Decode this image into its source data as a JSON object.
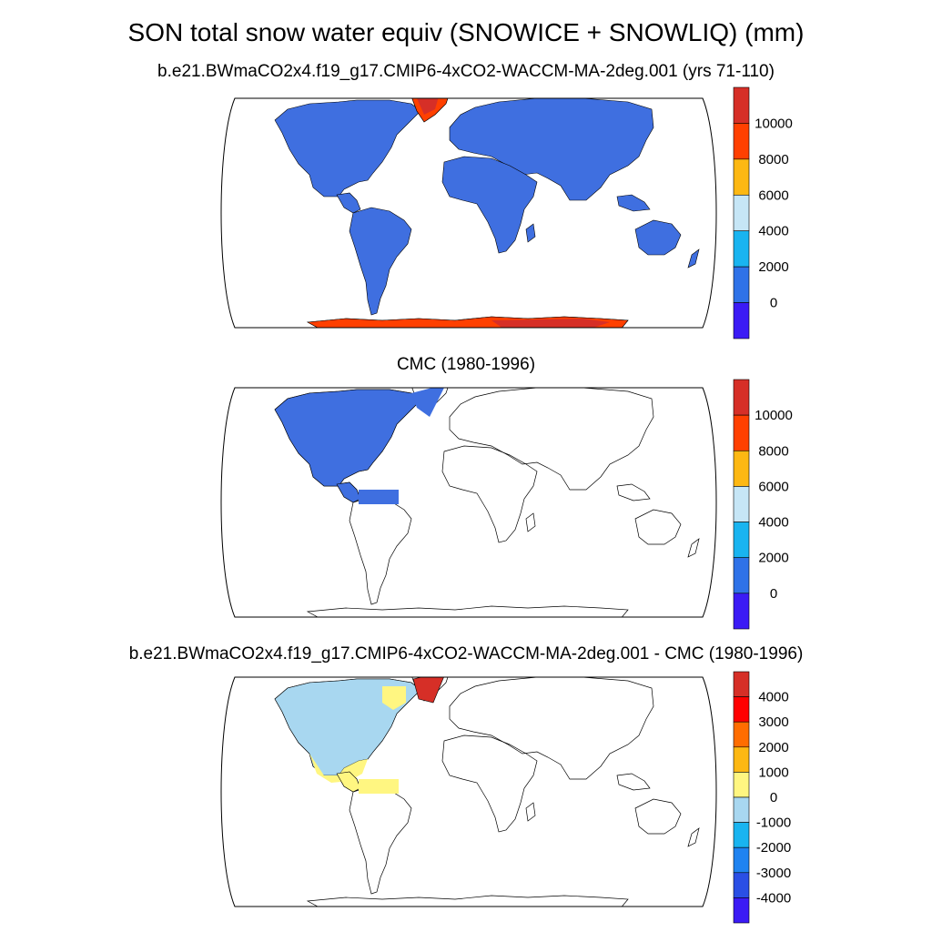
{
  "main_title": "SON total snow water equiv (SNOWICE + SNOWLIQ) (mm)",
  "panels": [
    {
      "title": "b.e21.BWmaCO2x4.f19_g17.CMIP6-4xCO2-WACCM-MA-2deg.001 (yrs 71-110)",
      "colorbar": {
        "labels": [
          "10000",
          "8000",
          "6000",
          "4000",
          "2000",
          "0"
        ],
        "colors": [
          "#d62f27",
          "#ff4000",
          "#fdb813",
          "#c6e6f6",
          "#19b4f0",
          "#2f72e8",
          "#3b1bf5"
        ]
      }
    },
    {
      "title": "CMC (1980-1996)",
      "colorbar": {
        "labels": [
          "10000",
          "8000",
          "6000",
          "4000",
          "2000",
          "0"
        ],
        "colors": [
          "#d62f27",
          "#ff4000",
          "#fdb813",
          "#c6e6f6",
          "#19b4f0",
          "#2f72e8",
          "#3b1bf5"
        ]
      }
    },
    {
      "title": "b.e21.BWmaCO2x4.f19_g17.CMIP6-4xCO2-WACCM-MA-2deg.001 - CMC (1980-1996)",
      "colorbar": {
        "labels": [
          "4000",
          "3000",
          "2000",
          "1000",
          "0",
          "-1000",
          "-2000",
          "-3000",
          "-4000"
        ],
        "colors": [
          "#d62f27",
          "#ff0000",
          "#ff6d00",
          "#fdb813",
          "#fff681",
          "#a8d7f0",
          "#19b4f0",
          "#1f83f0",
          "#2a4fe5",
          "#3b1bf5"
        ]
      }
    }
  ],
  "map_colors": {
    "land_snow_low": "#3f6fe0",
    "ice_sheet": "#ff4000",
    "ice_sheet_high": "#d62f27",
    "diff_neg_small": "#a8d7f0",
    "diff_pos_small": "#fff681"
  }
}
